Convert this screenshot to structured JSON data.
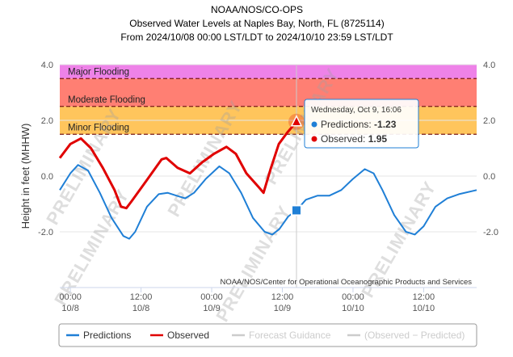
{
  "chart_data": {
    "type": "line",
    "title": "NOAA/NOS/CO-OPS",
    "subtitle": "Observed Water Levels at Naples Bay, North, FL (8725114)",
    "range": "From 2024/10/08 00:00 LST/LDT to 2024/10/10 23:59 LST/LDT",
    "y_label": "Height in feet (MHHW)",
    "credit": "NOAA/NOS/Center for Operational Oceanographic Products and Services",
    "watermark": "PRELIMINARY",
    "xlim": [
      -1.8,
      69
    ],
    "xticks": [
      {
        "value": 0,
        "label": "00:00",
        "date": "10/8"
      },
      {
        "value": 12,
        "label": "12:00",
        "date": "10/8"
      },
      {
        "value": 24,
        "label": "00:00",
        "date": "10/9"
      },
      {
        "value": 36,
        "label": "12:00",
        "date": "10/9"
      },
      {
        "value": 48,
        "label": "00:00",
        "date": "10/10"
      },
      {
        "value": 60,
        "label": "12:00",
        "date": "10/10"
      }
    ],
    "ylim": [
      -4,
      4
    ],
    "yticks": [
      {
        "value": 4,
        "label": "4.0"
      },
      {
        "value": 2,
        "label": "2.0"
      },
      {
        "value": 0,
        "label": "0.0"
      },
      {
        "value": -2,
        "label": "-2.0"
      }
    ],
    "grid": true,
    "bands": [
      {
        "name": "Minor Flooding",
        "range": [
          1.5,
          2.5
        ],
        "color": "#ffc55c"
      },
      {
        "name": "Moderate Flooding",
        "range": [
          2.5,
          3.5
        ],
        "color": "#ff7f73"
      },
      {
        "name": "Major Flooding",
        "range": [
          3.5,
          4.0
        ],
        "color": "#ee82e8"
      }
    ],
    "series": [
      {
        "name": "Predictions",
        "color": "#1f7fd6",
        "x": [
          -1.8,
          0,
          1.3,
          3,
          5,
          7,
          9,
          10,
          11,
          13,
          15,
          16.5,
          18,
          19.5,
          21,
          23,
          25.3,
          27,
          29,
          31,
          33,
          34.3,
          35.5,
          37,
          38.4,
          40,
          42,
          44,
          46,
          48,
          50,
          51.5,
          53,
          55,
          57,
          58.5,
          60,
          62,
          64,
          66,
          69
        ],
        "values": [
          -0.5,
          0.1,
          0.4,
          0.2,
          -0.6,
          -1.5,
          -2.15,
          -2.25,
          -2.0,
          -1.1,
          -0.65,
          -0.6,
          -0.7,
          -0.8,
          -0.6,
          -0.1,
          0.35,
          0.1,
          -0.6,
          -1.5,
          -2.0,
          -2.1,
          -1.9,
          -1.45,
          -1.23,
          -0.85,
          -0.7,
          -0.7,
          -0.5,
          -0.1,
          0.25,
          0.1,
          -0.5,
          -1.4,
          -2.0,
          -2.1,
          -1.8,
          -1.1,
          -0.8,
          -0.65,
          -0.5
        ]
      },
      {
        "name": "Observed",
        "color": "#e00000",
        "x": [
          -1.8,
          0,
          1.8,
          3.5,
          5.5,
          7.5,
          8.6,
          9.5,
          10.4,
          12.8,
          15.5,
          16.3,
          18.2,
          20.3,
          22.4,
          24.4,
          26.5,
          28.1,
          29.9,
          32,
          32.8,
          34,
          35.4,
          36.8,
          38.4
        ],
        "values": [
          0.65,
          1.15,
          1.35,
          1.0,
          0.3,
          -0.5,
          -1.1,
          -1.15,
          -0.9,
          -0.2,
          0.6,
          0.65,
          0.3,
          0.1,
          0.5,
          0.8,
          1.05,
          0.8,
          0.1,
          -0.4,
          -0.6,
          0.25,
          1.15,
          1.55,
          1.95
        ]
      },
      {
        "name": "Forecast Guidance",
        "color": "#cccccc",
        "x": [],
        "values": []
      },
      {
        "name": "(Observed − Predicted)",
        "color": "#cccccc",
        "x": [],
        "values": []
      }
    ],
    "tooltip": {
      "header": "Wednesday, Oct 9, 16:06",
      "labels": [
        "Predictions:",
        "Observed:"
      ]
    }
  }
}
